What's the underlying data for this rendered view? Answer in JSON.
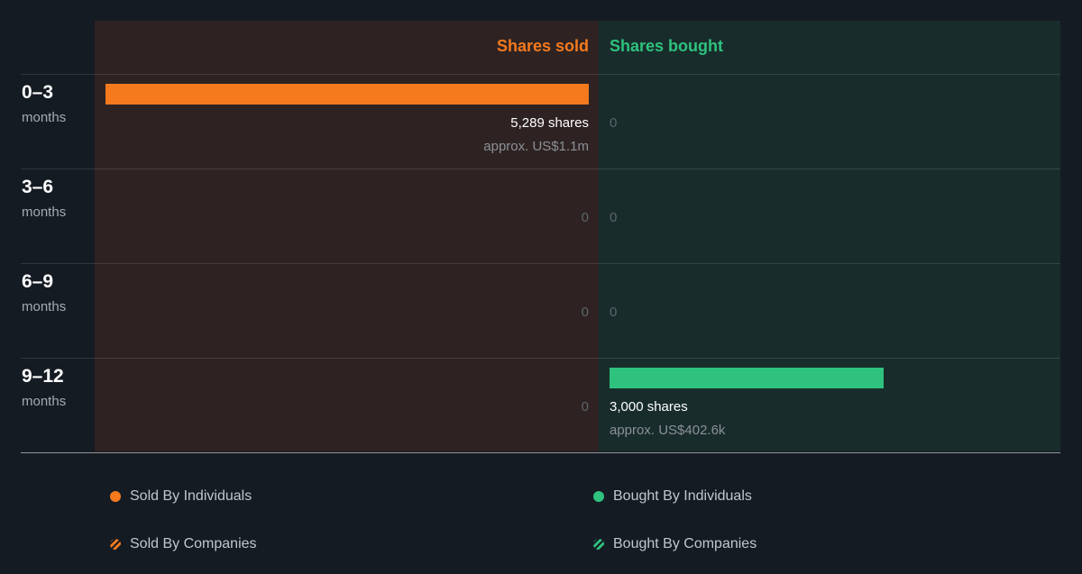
{
  "chart_data": {
    "type": "bar",
    "orientation": "horizontal-diverging",
    "header": {
      "sold": "Shares sold",
      "bought": "Shares bought"
    },
    "colors": {
      "sold": "#f57a1e",
      "bought": "#2ec27e",
      "zero": "#5d646b"
    },
    "rows": [
      {
        "range": "0–3",
        "unit": "months",
        "sold": 5289,
        "sold_label": "5,289 shares",
        "sold_approx": "approx. US$1.1m",
        "bought": 0,
        "bought_label": "0",
        "bought_approx": ""
      },
      {
        "range": "3–6",
        "unit": "months",
        "sold": 0,
        "sold_label": "0",
        "sold_approx": "",
        "bought": 0,
        "bought_label": "0",
        "bought_approx": ""
      },
      {
        "range": "6–9",
        "unit": "months",
        "sold": 0,
        "sold_label": "0",
        "sold_approx": "",
        "bought": 0,
        "bought_label": "0",
        "bought_approx": ""
      },
      {
        "range": "9–12",
        "unit": "months",
        "sold": 0,
        "sold_label": "0",
        "sold_approx": "",
        "bought": 3000,
        "bought_label": "3,000 shares",
        "bought_approx": "approx. US$402.6k"
      }
    ],
    "legend": [
      {
        "label": "Sold By Individuals",
        "color": "#f57a1e",
        "style": "solid"
      },
      {
        "label": "Sold By Companies",
        "color": "#f57a1e",
        "style": "hatched"
      },
      {
        "label": "Bought By Individuals",
        "color": "#2ec27e",
        "style": "solid"
      },
      {
        "label": "Bought By Companies",
        "color": "#2ec27e",
        "style": "hatched"
      }
    ]
  }
}
